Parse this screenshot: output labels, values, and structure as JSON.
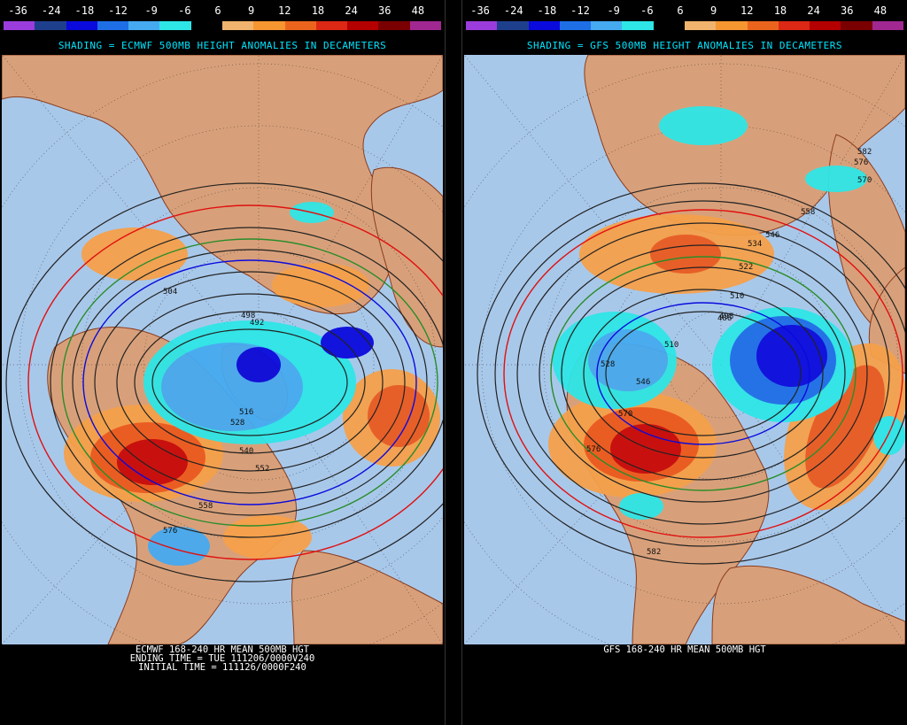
{
  "scale": {
    "labels": [
      "-36",
      "-24",
      "-18",
      "-12",
      "-9",
      "-6",
      "6",
      "9",
      "12",
      "18",
      "24",
      "36",
      "48"
    ],
    "colors": [
      "#9b3cdc",
      "#1e3f8c",
      "#0a0adc",
      "#1e6ee6",
      "#46aaf0",
      "#2ee6e6",
      "#000000",
      "#f0b46e",
      "#f59630",
      "#eb641e",
      "#dc2814",
      "#b40000",
      "#7a0000",
      "#a02890"
    ]
  },
  "panels": {
    "left": {
      "subtitle": "SHADING = ECMWF 500MB HEIGHT ANOMALIES IN DECAMETERS",
      "footer_line1": "ECMWF 168-240 HR MEAN 500MB HGT",
      "footer_line2": "ENDING TIME = TUE 111206/0000V240",
      "footer_line3": "INITIAL TIME = 111126/0000F240",
      "contour_labels": [
        "504",
        "498",
        "492",
        "516",
        "528",
        "540",
        "552",
        "558",
        "576"
      ]
    },
    "right": {
      "subtitle": "SHADING = GFS 500MB HEIGHT ANOMALIES IN DECAMETERS",
      "footer_line1": "GFS 168-240 HR MEAN 500MB HGT",
      "contour_labels": [
        "582",
        "576",
        "570",
        "558",
        "546",
        "534",
        "522",
        "510",
        "498",
        "486",
        "510",
        "528",
        "546",
        "570",
        "576",
        "582"
      ]
    }
  },
  "colors": {
    "land": "#d8a07a",
    "ocean": "#a8c8ea",
    "coast": "#8b3c1e"
  }
}
